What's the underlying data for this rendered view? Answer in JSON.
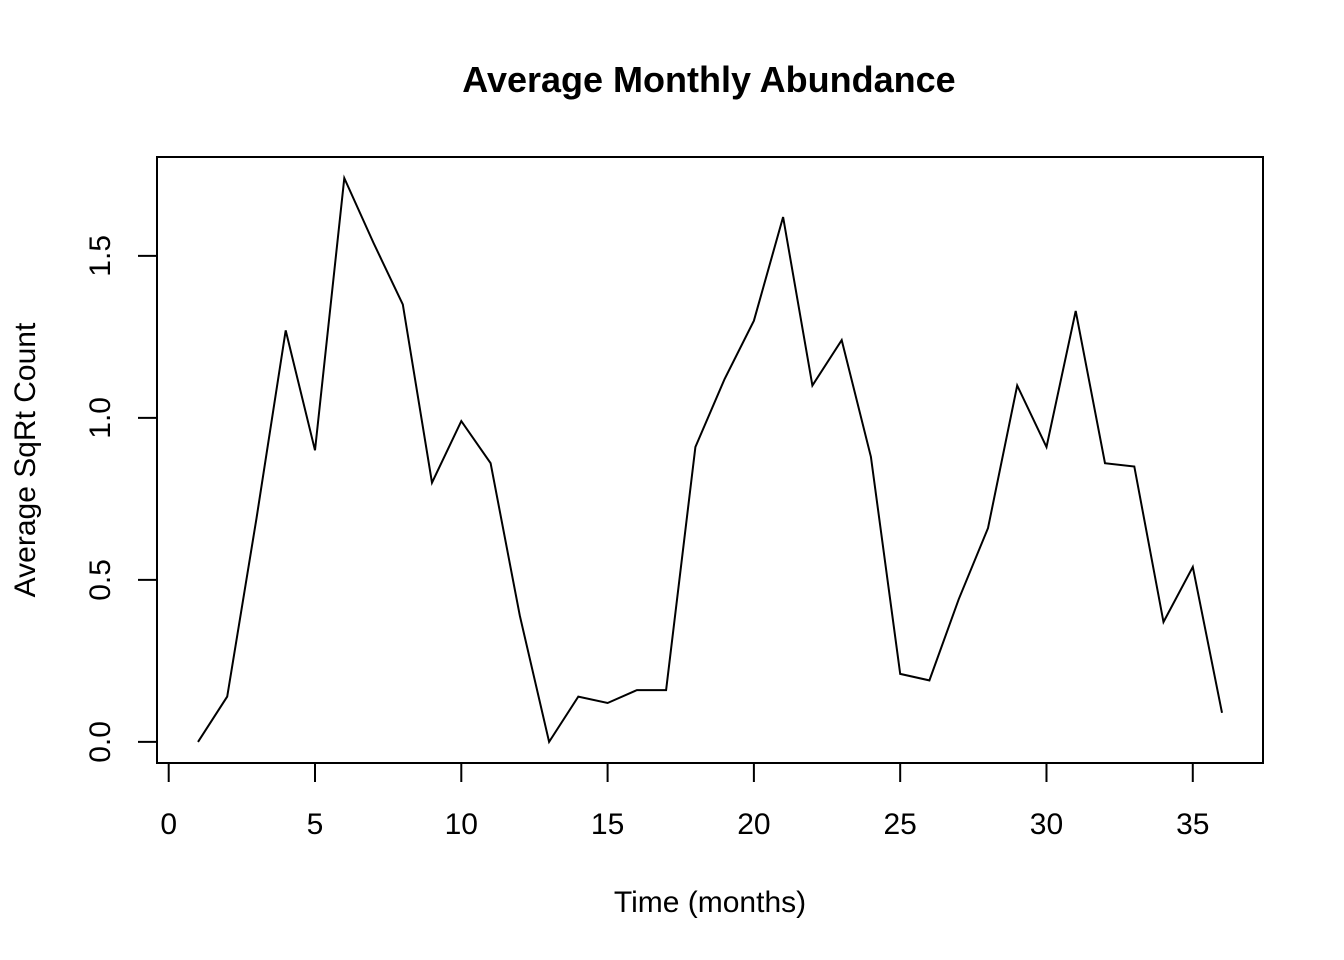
{
  "chart_data": {
    "type": "line",
    "title": "Average Monthly Abundance",
    "xlabel": "Time (months)",
    "ylabel": "Average SqRt Count",
    "xlim": [
      -0.4,
      37.4
    ],
    "ylim": [
      -0.065,
      1.805
    ],
    "x_ticks": [
      0,
      5,
      10,
      15,
      20,
      25,
      30,
      35
    ],
    "x_tick_labels": [
      "0",
      "5",
      "10",
      "15",
      "20",
      "25",
      "30",
      "35"
    ],
    "y_ticks": [
      0.0,
      0.5,
      1.0,
      1.5
    ],
    "y_tick_labels": [
      "0.0",
      "0.5",
      "1.0",
      "1.5"
    ],
    "grid": false,
    "series": [
      {
        "color": "#000000",
        "x": [
          1,
          2,
          3,
          4,
          5,
          6,
          7,
          8,
          9,
          10,
          11,
          12,
          13,
          14,
          15,
          16,
          17,
          18,
          19,
          20,
          21,
          22,
          23,
          24,
          25,
          26,
          27,
          28,
          29,
          30,
          31,
          32,
          33,
          34,
          35,
          36
        ],
        "values": [
          0.0,
          0.14,
          0.69,
          1.27,
          0.9,
          1.74,
          1.54,
          1.35,
          0.8,
          0.99,
          0.86,
          0.39,
          0.0,
          0.14,
          0.12,
          0.16,
          0.16,
          0.91,
          1.12,
          1.3,
          1.62,
          1.1,
          1.24,
          0.88,
          0.21,
          0.19,
          0.44,
          0.66,
          1.1,
          0.91,
          1.33,
          0.86,
          0.85,
          0.37,
          0.54,
          0.09
        ]
      }
    ]
  }
}
